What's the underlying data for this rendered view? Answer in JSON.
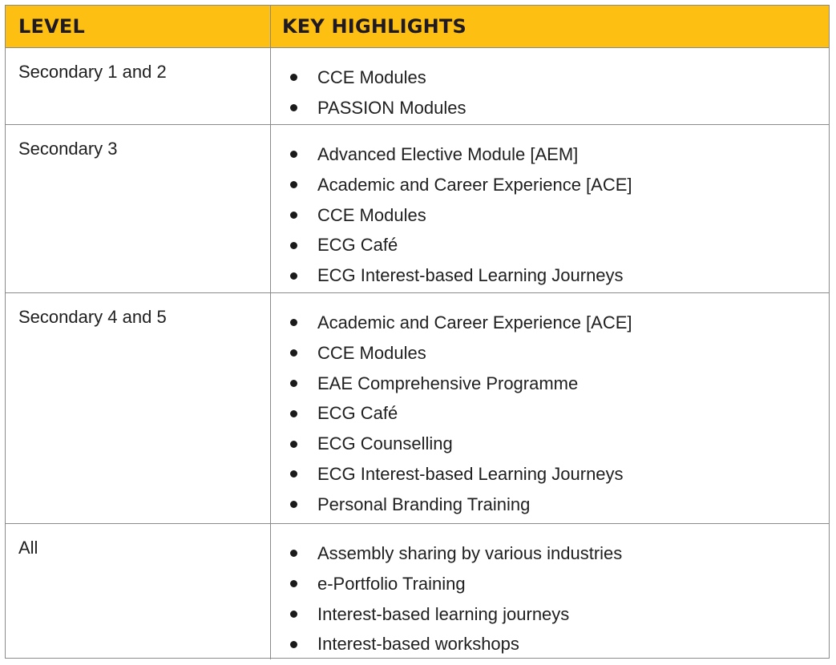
{
  "table": {
    "headers": {
      "level": "LEVEL",
      "highlights": "KEY HIGHLIGHTS"
    },
    "header_color": "#fdbf12",
    "rows": [
      {
        "level": "Secondary 1 and 2",
        "items": [
          "CCE Modules",
          "PASSION Modules"
        ]
      },
      {
        "level": "Secondary 3",
        "items": [
          "Advanced Elective Module [AEM]",
          "Academic and Career Experience [ACE]",
          "CCE Modules",
          "ECG Café",
          "ECG Interest-based Learning Journeys"
        ]
      },
      {
        "level": "Secondary 4 and 5",
        "items": [
          "Academic and Career Experience [ACE]",
          "CCE Modules",
          "EAE Comprehensive Programme",
          "ECG Café",
          "ECG Counselling",
          "ECG Interest-based Learning Journeys",
          "Personal Branding Training"
        ]
      },
      {
        "level": "All",
        "items": [
          "Assembly sharing by various industries",
          "e-Portfolio Training",
          "Interest-based learning journeys",
          "Interest-based workshops"
        ]
      }
    ]
  }
}
